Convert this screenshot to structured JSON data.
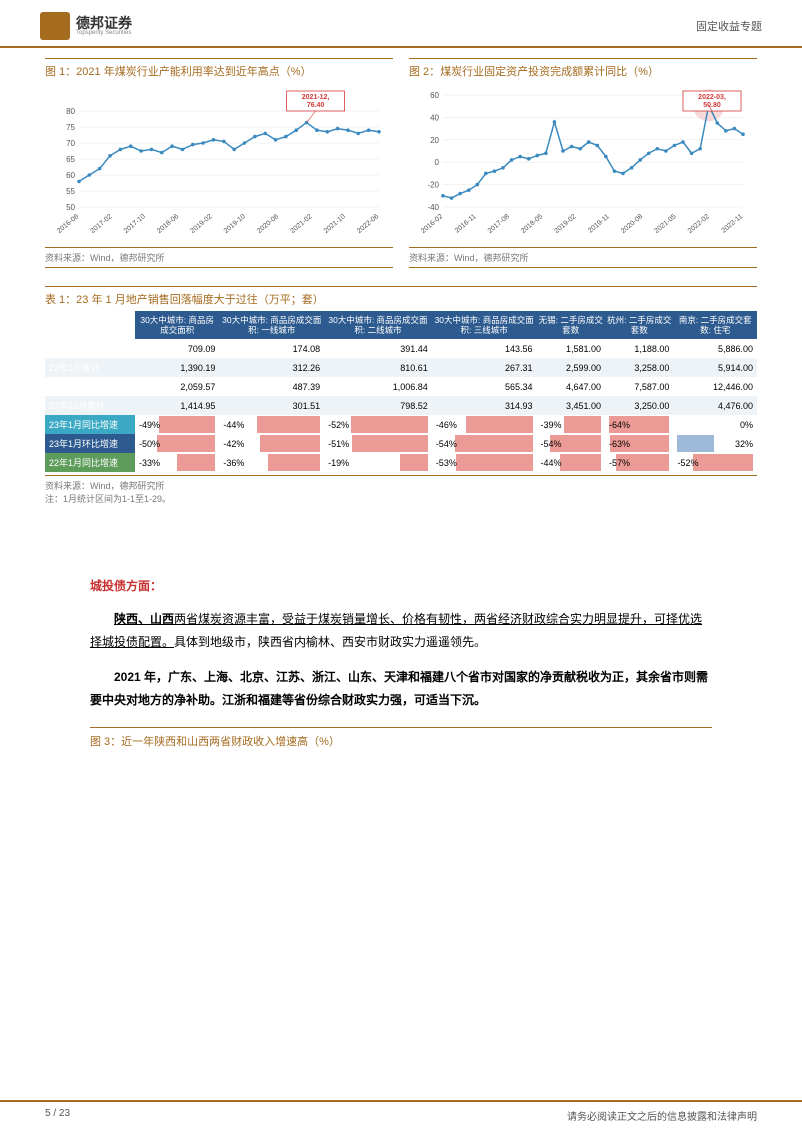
{
  "header": {
    "logo_cn": "德邦证券",
    "logo_en": "Topsperity Securities",
    "right": "固定收益专题"
  },
  "chart1": {
    "title": "图 1：2021 年煤炭行业产能利用率达到近年高点（%）",
    "type": "line",
    "callout": "2021-12, 76.40",
    "ylim": [
      50,
      85
    ],
    "yticks": [
      50,
      55,
      60,
      65,
      70,
      75,
      80
    ],
    "xlabels": [
      "2016-06",
      "2017-02",
      "2017-10",
      "2018-06",
      "2019-02",
      "2019-10",
      "2020-06",
      "2021-02",
      "2021-10",
      "2022-06"
    ],
    "values": [
      58,
      60,
      62,
      66,
      68,
      69,
      67.5,
      68,
      67,
      69,
      68,
      69.5,
      70,
      71,
      70.5,
      68,
      70,
      72,
      73,
      71,
      72,
      74,
      76.4,
      74,
      73.5,
      74.5,
      74,
      73,
      74,
      73.5
    ],
    "line_color": "#3a8abf",
    "marker_color": "#3a8abf",
    "callout_color": "#d33838",
    "grid_color": "#e6e6e6",
    "background": "#ffffff",
    "source": "资料来源：Wind，德邦研究所"
  },
  "chart2": {
    "title": "图 2：煤炭行业固定资产投资完成额累计同比（%）",
    "type": "line",
    "callout": "2022-03, 50.80",
    "ylim": [
      -40,
      60
    ],
    "yticks": [
      -40,
      -20,
      0,
      20,
      40,
      60
    ],
    "xlabels": [
      "2016-02",
      "2016-11",
      "2017-08",
      "2018-05",
      "2019-02",
      "2019-11",
      "2020-08",
      "2021-05",
      "2022-02",
      "2022-11"
    ],
    "values": [
      -30,
      -32,
      -28,
      -25,
      -20,
      -10,
      -8,
      -5,
      2,
      5,
      3,
      6,
      8,
      36,
      10,
      14,
      12,
      18,
      15,
      5,
      -8,
      -10,
      -5,
      2,
      8,
      12,
      10,
      15,
      18,
      8,
      12,
      50.8,
      35,
      28,
      30,
      25
    ],
    "line_color": "#3a8abf",
    "marker_color": "#3a8abf",
    "callout_color": "#d33838",
    "highlight_color": "#f5c9c9",
    "grid_color": "#e6e6e6",
    "background": "#ffffff",
    "source": "资料来源：Wind，德邦研究所"
  },
  "table1": {
    "title": "表 1：23 年 1 月地产销售回落幅度大于过往（万平；套）",
    "columns": [
      "",
      "30大中城市: 商品房成交面积",
      "30大中城市: 商品房成交面积: 一线城市",
      "30大中城市: 商品房成交面积: 二线城市",
      "30大中城市: 商品房成交面积: 三线城市",
      "无锡: 二手房成交套数",
      "杭州: 二手房成交套数",
      "南京: 二手房成交套数: 住宅"
    ],
    "rows": [
      {
        "label": "23年1月累计",
        "vals": [
          "709.09",
          "174.08",
          "391.44",
          "143.56",
          "1,581.00",
          "1,188.00",
          "5,886.00"
        ]
      },
      {
        "label": "22年1月累计",
        "vals": [
          "1,390.19",
          "312.26",
          "810.61",
          "267.31",
          "2,599.00",
          "3,258.00",
          "5,914.00"
        ]
      },
      {
        "label": "21年1月累计",
        "vals": [
          "2,059.57",
          "487.39",
          "1,006.84",
          "565.34",
          "4,647.00",
          "7,587.00",
          "12,446.00"
        ]
      },
      {
        "label": "22年12月累计",
        "vals": [
          "1,414.95",
          "301.51",
          "798.52",
          "314.93",
          "3,451.00",
          "3,250.00",
          "4,476.00"
        ]
      }
    ],
    "growth_rows": [
      {
        "label": "23年1月同比增速",
        "cls": "growth-row1",
        "vals": [
          -49,
          -44,
          -52,
          -46,
          -39,
          -64,
          0
        ]
      },
      {
        "label": "23年1月环比增速",
        "cls": "growth-row2",
        "vals": [
          -50,
          -42,
          -51,
          -54,
          -54,
          -63,
          32
        ]
      },
      {
        "label": "22年1月同比增速",
        "cls": "growth-row3",
        "vals": [
          -33,
          -36,
          -19,
          -53,
          -44,
          -57,
          -52
        ]
      }
    ],
    "header_bg": "#2e5b8f",
    "neg_bar_color": "#ec9a95",
    "pos_bar_color": "#9fb9d8",
    "source": "资料来源：Wind，德邦研究所",
    "note": "注：1月统计区间为1-1至1-29。"
  },
  "body": {
    "heading": "城投债方面：",
    "p1a": "陕西、山西",
    "p1b": "两省煤炭资源丰富，受益于煤炭销量增长、价格有韧性，两省经济财政综合实力明显提升，可择优选择城投债配置。",
    "p1c": "具体到地级市，陕西省内榆林、西安市财政实力遥遥领先。",
    "p2a": "2021 年，广东、上海、北京、江苏、浙江、山东、天津和福建八个省市对国家的净贡献税收为正，其余省市则需要中央对地方的净补助。江浙和福建等省份综合财政实力强，可适当下沉。"
  },
  "chart3": {
    "title": "图 3：近一年陕西和山西两省财政收入增速高（%）"
  },
  "footer": {
    "page": "5 / 23",
    "disclaimer": "请务必阅读正文之后的信息披露和法律声明"
  }
}
